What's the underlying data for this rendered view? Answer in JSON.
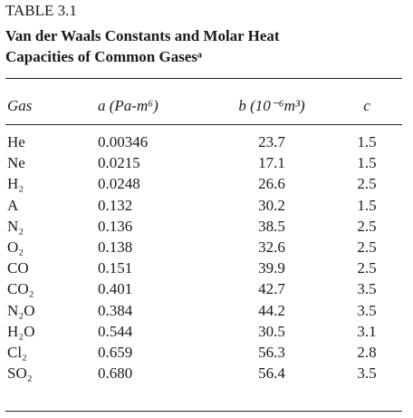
{
  "header": {
    "label": "TABLE 3.1",
    "title_line1": "Van der Waals Constants and Molar Heat",
    "title_line2": "Capacities of Common Gasesᵃ"
  },
  "table": {
    "columns": [
      "Gas",
      "a (Pa-m⁶)",
      "b (10⁻⁶m³)",
      "c"
    ],
    "rows": [
      [
        "He",
        "0.00346",
        "23.7",
        "1.5"
      ],
      [
        "Ne",
        "0.0215",
        "17.1",
        "1.5"
      ],
      [
        "H₂",
        "0.0248",
        "26.6",
        "2.5"
      ],
      [
        "A",
        "0.132",
        "30.2",
        "1.5"
      ],
      [
        "N₂",
        "0.136",
        "38.5",
        "2.5"
      ],
      [
        "O₂",
        "0.138",
        "32.6",
        "2.5"
      ],
      [
        "CO",
        "0.151",
        "39.9",
        "2.5"
      ],
      [
        "CO₂",
        "0.401",
        "42.7",
        "3.5"
      ],
      [
        "N₂O",
        "0.384",
        "44.2",
        "3.5"
      ],
      [
        "H₂O",
        "0.544",
        "30.5",
        "3.1"
      ],
      [
        "Cl₂",
        "0.659",
        "56.3",
        "2.8"
      ],
      [
        "SO₂",
        "0.680",
        "56.4",
        "3.5"
      ]
    ]
  }
}
